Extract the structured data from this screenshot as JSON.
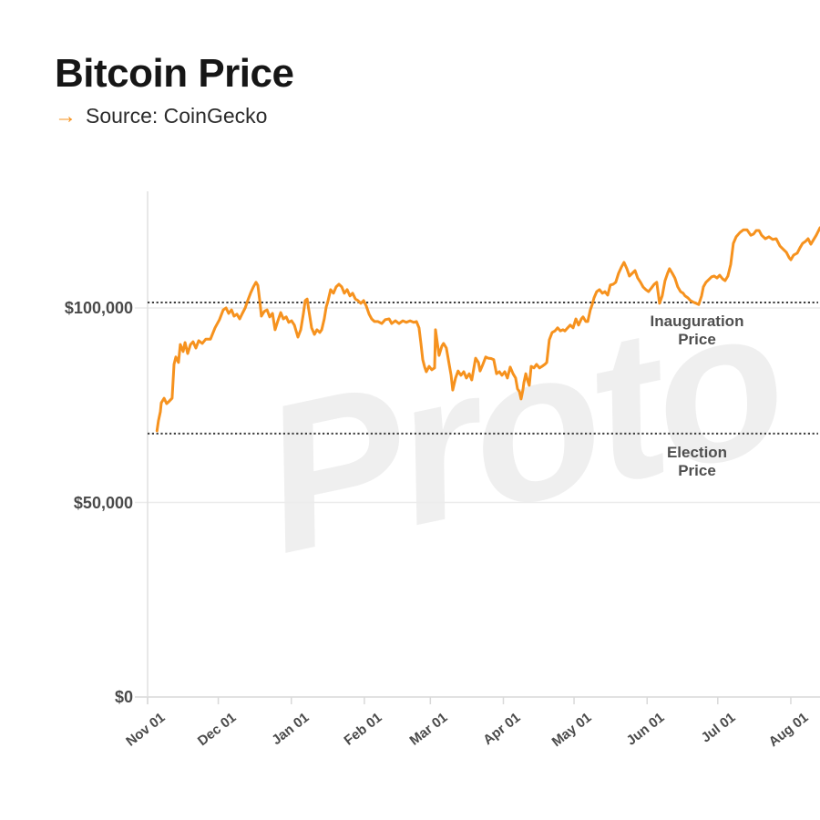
{
  "header": {
    "title": "Bitcoin Price",
    "source_arrow": "→",
    "source_label": "Source: CoinGecko"
  },
  "watermark_text": "Proto",
  "colors": {
    "line": "#F6921E",
    "accent_arrow": "#F6921E",
    "grid": "#ececec",
    "axis": "#e0e0e0",
    "baseline": "#d9d9d9",
    "reference_dotted": "#3d3d3d",
    "label_gray": "#4a4a4a",
    "watermark": "#efefef"
  },
  "chart_data": {
    "type": "line",
    "title": "Bitcoin Price",
    "source": "CoinGecko",
    "x_axis": {
      "tick_labels": [
        "Nov 01",
        "Dec 01",
        "Jan 01",
        "Feb 01",
        "Mar 01",
        "Apr 01",
        "May 01",
        "Jun 01",
        "Jul 01",
        "Aug 01"
      ],
      "tick_day_offsets": [
        0,
        30,
        61,
        92,
        120,
        151,
        181,
        212,
        242,
        273
      ],
      "start_date": "Nov 01",
      "end_day_offset": 285.4
    },
    "y_axis": {
      "tick_labels": [
        "$0",
        "$50,000",
        "$100,000"
      ],
      "tick_values": [
        0,
        50000,
        100000
      ],
      "range": [
        0,
        130000
      ],
      "grid": true
    },
    "reference_lines": [
      {
        "label_line1": "Inauguration",
        "label_line2": "Price",
        "value": 101400
      },
      {
        "label_line1": "Election",
        "label_line2": "Price",
        "value": 67700
      }
    ],
    "legend_position": "none",
    "series": [
      {
        "name": "Bitcoin price (USD)",
        "color": "#F6921E",
        "points": [
          [
            4,
            68400
          ],
          [
            4.6,
            71000
          ],
          [
            5.4,
            73300
          ],
          [
            5.8,
            75600
          ],
          [
            7,
            76800
          ],
          [
            8.1,
            75400
          ],
          [
            9.3,
            76100
          ],
          [
            10.4,
            76800
          ],
          [
            11.2,
            85500
          ],
          [
            12,
            87400
          ],
          [
            13.1,
            86000
          ],
          [
            13.9,
            90600
          ],
          [
            15.1,
            88800
          ],
          [
            15.9,
            91100
          ],
          [
            17,
            88300
          ],
          [
            18.2,
            90600
          ],
          [
            19.3,
            91300
          ],
          [
            20.5,
            89700
          ],
          [
            21.7,
            91600
          ],
          [
            23.2,
            90900
          ],
          [
            24.7,
            92000
          ],
          [
            26.7,
            92000
          ],
          [
            28.6,
            94900
          ],
          [
            30.5,
            97000
          ],
          [
            32.1,
            99500
          ],
          [
            33.3,
            100000
          ],
          [
            34.4,
            98600
          ],
          [
            35.6,
            99500
          ],
          [
            36.7,
            97900
          ],
          [
            37.9,
            98400
          ],
          [
            39.1,
            97200
          ],
          [
            40.2,
            98600
          ],
          [
            41.4,
            100000
          ],
          [
            42.5,
            101900
          ],
          [
            43.7,
            103800
          ],
          [
            44.9,
            105400
          ],
          [
            46,
            106600
          ],
          [
            46.8,
            105800
          ],
          [
            47.6,
            101900
          ],
          [
            48.3,
            97900
          ],
          [
            49.5,
            99100
          ],
          [
            50.7,
            99500
          ],
          [
            51.8,
            97700
          ],
          [
            53,
            98600
          ],
          [
            54.1,
            94400
          ],
          [
            55.3,
            96700
          ],
          [
            56.5,
            98800
          ],
          [
            57.6,
            97200
          ],
          [
            58.8,
            97700
          ],
          [
            59.9,
            96300
          ],
          [
            61.1,
            96700
          ],
          [
            62.3,
            95600
          ],
          [
            63.8,
            92500
          ],
          [
            65,
            94400
          ],
          [
            66.1,
            98400
          ],
          [
            66.9,
            101900
          ],
          [
            67.7,
            102300
          ],
          [
            68.4,
            99500
          ],
          [
            69.6,
            94900
          ],
          [
            70.8,
            93200
          ],
          [
            71.9,
            94400
          ],
          [
            73.1,
            93700
          ],
          [
            73.9,
            94400
          ],
          [
            75,
            97200
          ],
          [
            75.8,
            100200
          ],
          [
            76.6,
            101900
          ],
          [
            77.7,
            104700
          ],
          [
            78.9,
            103800
          ],
          [
            80,
            105400
          ],
          [
            81.2,
            106100
          ],
          [
            82.4,
            105400
          ],
          [
            83.5,
            103800
          ],
          [
            84.7,
            104700
          ],
          [
            85.9,
            103100
          ],
          [
            87,
            103800
          ],
          [
            88.2,
            102300
          ],
          [
            89.3,
            101900
          ],
          [
            90.5,
            101200
          ],
          [
            91.7,
            101900
          ],
          [
            92.8,
            100500
          ],
          [
            94,
            98400
          ],
          [
            95.1,
            97200
          ],
          [
            96.3,
            96500
          ],
          [
            97.8,
            96500
          ],
          [
            99.4,
            96000
          ],
          [
            100.9,
            97000
          ],
          [
            102.5,
            97200
          ],
          [
            103.6,
            96000
          ],
          [
            105.2,
            96700
          ],
          [
            106.7,
            96000
          ],
          [
            108.3,
            96700
          ],
          [
            109.8,
            96300
          ],
          [
            111.4,
            96700
          ],
          [
            112.9,
            96300
          ],
          [
            114.1,
            96500
          ],
          [
            115.2,
            94900
          ],
          [
            116,
            90900
          ],
          [
            116.8,
            86700
          ],
          [
            117.6,
            84800
          ],
          [
            118.3,
            83600
          ],
          [
            119.5,
            85000
          ],
          [
            120.6,
            84100
          ],
          [
            121.8,
            84600
          ],
          [
            122.2,
            94400
          ],
          [
            122.9,
            91300
          ],
          [
            123.7,
            87800
          ],
          [
            124.9,
            90200
          ],
          [
            125.6,
            90900
          ],
          [
            126.8,
            89700
          ],
          [
            128,
            85500
          ],
          [
            128.8,
            82700
          ],
          [
            129.5,
            78900
          ],
          [
            130.7,
            82000
          ],
          [
            131.8,
            83800
          ],
          [
            133,
            82700
          ],
          [
            134.2,
            83600
          ],
          [
            135.3,
            82000
          ],
          [
            136.5,
            83100
          ],
          [
            137.6,
            81500
          ],
          [
            139.2,
            87100
          ],
          [
            140.4,
            86000
          ],
          [
            141.1,
            83800
          ],
          [
            142.3,
            85500
          ],
          [
            143.5,
            87400
          ],
          [
            144.6,
            87100
          ],
          [
            145.8,
            87000
          ],
          [
            146.9,
            86700
          ],
          [
            148.1,
            83100
          ],
          [
            149.3,
            83600
          ],
          [
            150.4,
            82700
          ],
          [
            151.6,
            83600
          ],
          [
            152.7,
            82000
          ],
          [
            153.9,
            84800
          ],
          [
            155.1,
            83100
          ],
          [
            156.2,
            82000
          ],
          [
            157,
            79200
          ],
          [
            157.8,
            78500
          ],
          [
            158.5,
            76600
          ],
          [
            159.3,
            78900
          ],
          [
            159.7,
            80800
          ],
          [
            160.5,
            83100
          ],
          [
            161.3,
            81300
          ],
          [
            162,
            80100
          ],
          [
            162.8,
            85000
          ],
          [
            164,
            84600
          ],
          [
            165.1,
            85500
          ],
          [
            166.3,
            84600
          ],
          [
            167.4,
            85000
          ],
          [
            168.6,
            85500
          ],
          [
            169.4,
            86000
          ],
          [
            170.5,
            91800
          ],
          [
            171.7,
            93700
          ],
          [
            172.9,
            94100
          ],
          [
            174,
            94900
          ],
          [
            175.2,
            94100
          ],
          [
            176.3,
            94400
          ],
          [
            177.1,
            94100
          ],
          [
            178.3,
            94900
          ],
          [
            179.4,
            95600
          ],
          [
            180.6,
            94900
          ],
          [
            181.8,
            97200
          ],
          [
            182.9,
            95600
          ],
          [
            184.1,
            97200
          ],
          [
            184.8,
            97700
          ],
          [
            186,
            96500
          ],
          [
            186.8,
            96500
          ],
          [
            187.9,
            99500
          ],
          [
            188.7,
            100900
          ],
          [
            189.5,
            102600
          ],
          [
            190.6,
            104200
          ],
          [
            191.8,
            104700
          ],
          [
            193,
            103800
          ],
          [
            194.1,
            104200
          ],
          [
            195.3,
            103300
          ],
          [
            196.4,
            105900
          ],
          [
            197.6,
            106100
          ],
          [
            198.7,
            106600
          ],
          [
            199.9,
            108900
          ],
          [
            201.1,
            110500
          ],
          [
            202.2,
            111700
          ],
          [
            203.4,
            110100
          ],
          [
            204.5,
            108200
          ],
          [
            205.7,
            108900
          ],
          [
            206.9,
            109600
          ],
          [
            208,
            107700
          ],
          [
            209.2,
            106600
          ],
          [
            210.3,
            105400
          ],
          [
            211.5,
            104700
          ],
          [
            212.6,
            104200
          ],
          [
            213.8,
            105100
          ],
          [
            215,
            106100
          ],
          [
            216.1,
            106600
          ],
          [
            217.3,
            101200
          ],
          [
            218.4,
            103100
          ],
          [
            219.6,
            107000
          ],
          [
            220.7,
            108900
          ],
          [
            221.5,
            110100
          ],
          [
            222.7,
            108900
          ],
          [
            223.8,
            107700
          ],
          [
            225,
            105400
          ],
          [
            226.2,
            104200
          ],
          [
            227.3,
            103800
          ],
          [
            228.1,
            103100
          ],
          [
            229.3,
            102600
          ],
          [
            230.4,
            101900
          ],
          [
            231.6,
            101500
          ],
          [
            232.8,
            101200
          ],
          [
            233.9,
            100900
          ],
          [
            235.1,
            103100
          ],
          [
            235.9,
            105400
          ],
          [
            237,
            106600
          ],
          [
            238.2,
            107300
          ],
          [
            239.4,
            108000
          ],
          [
            240.5,
            108200
          ],
          [
            241.7,
            107700
          ],
          [
            242.8,
            108400
          ],
          [
            244,
            107500
          ],
          [
            245.1,
            107000
          ],
          [
            246.3,
            108200
          ],
          [
            247.5,
            111200
          ],
          [
            248.6,
            116600
          ],
          [
            249.8,
            118300
          ],
          [
            251.4,
            119400
          ],
          [
            252.9,
            120100
          ],
          [
            254.4,
            120100
          ],
          [
            256,
            118700
          ],
          [
            257.2,
            119000
          ],
          [
            258.3,
            119900
          ],
          [
            259.5,
            119900
          ],
          [
            260.6,
            118700
          ],
          [
            262.2,
            117800
          ],
          [
            263.7,
            118300
          ],
          [
            265.3,
            117600
          ],
          [
            266.8,
            117800
          ],
          [
            268.4,
            115900
          ],
          [
            269.9,
            115000
          ],
          [
            271.1,
            114300
          ],
          [
            272.3,
            112900
          ],
          [
            273,
            112400
          ],
          [
            274.2,
            113600
          ],
          [
            275.7,
            114100
          ],
          [
            276.9,
            115500
          ],
          [
            278,
            116600
          ],
          [
            279.2,
            117100
          ],
          [
            280.3,
            117800
          ],
          [
            281.5,
            116400
          ],
          [
            282.7,
            117600
          ],
          [
            283.8,
            118700
          ],
          [
            285.4,
            120600
          ]
        ]
      }
    ]
  }
}
